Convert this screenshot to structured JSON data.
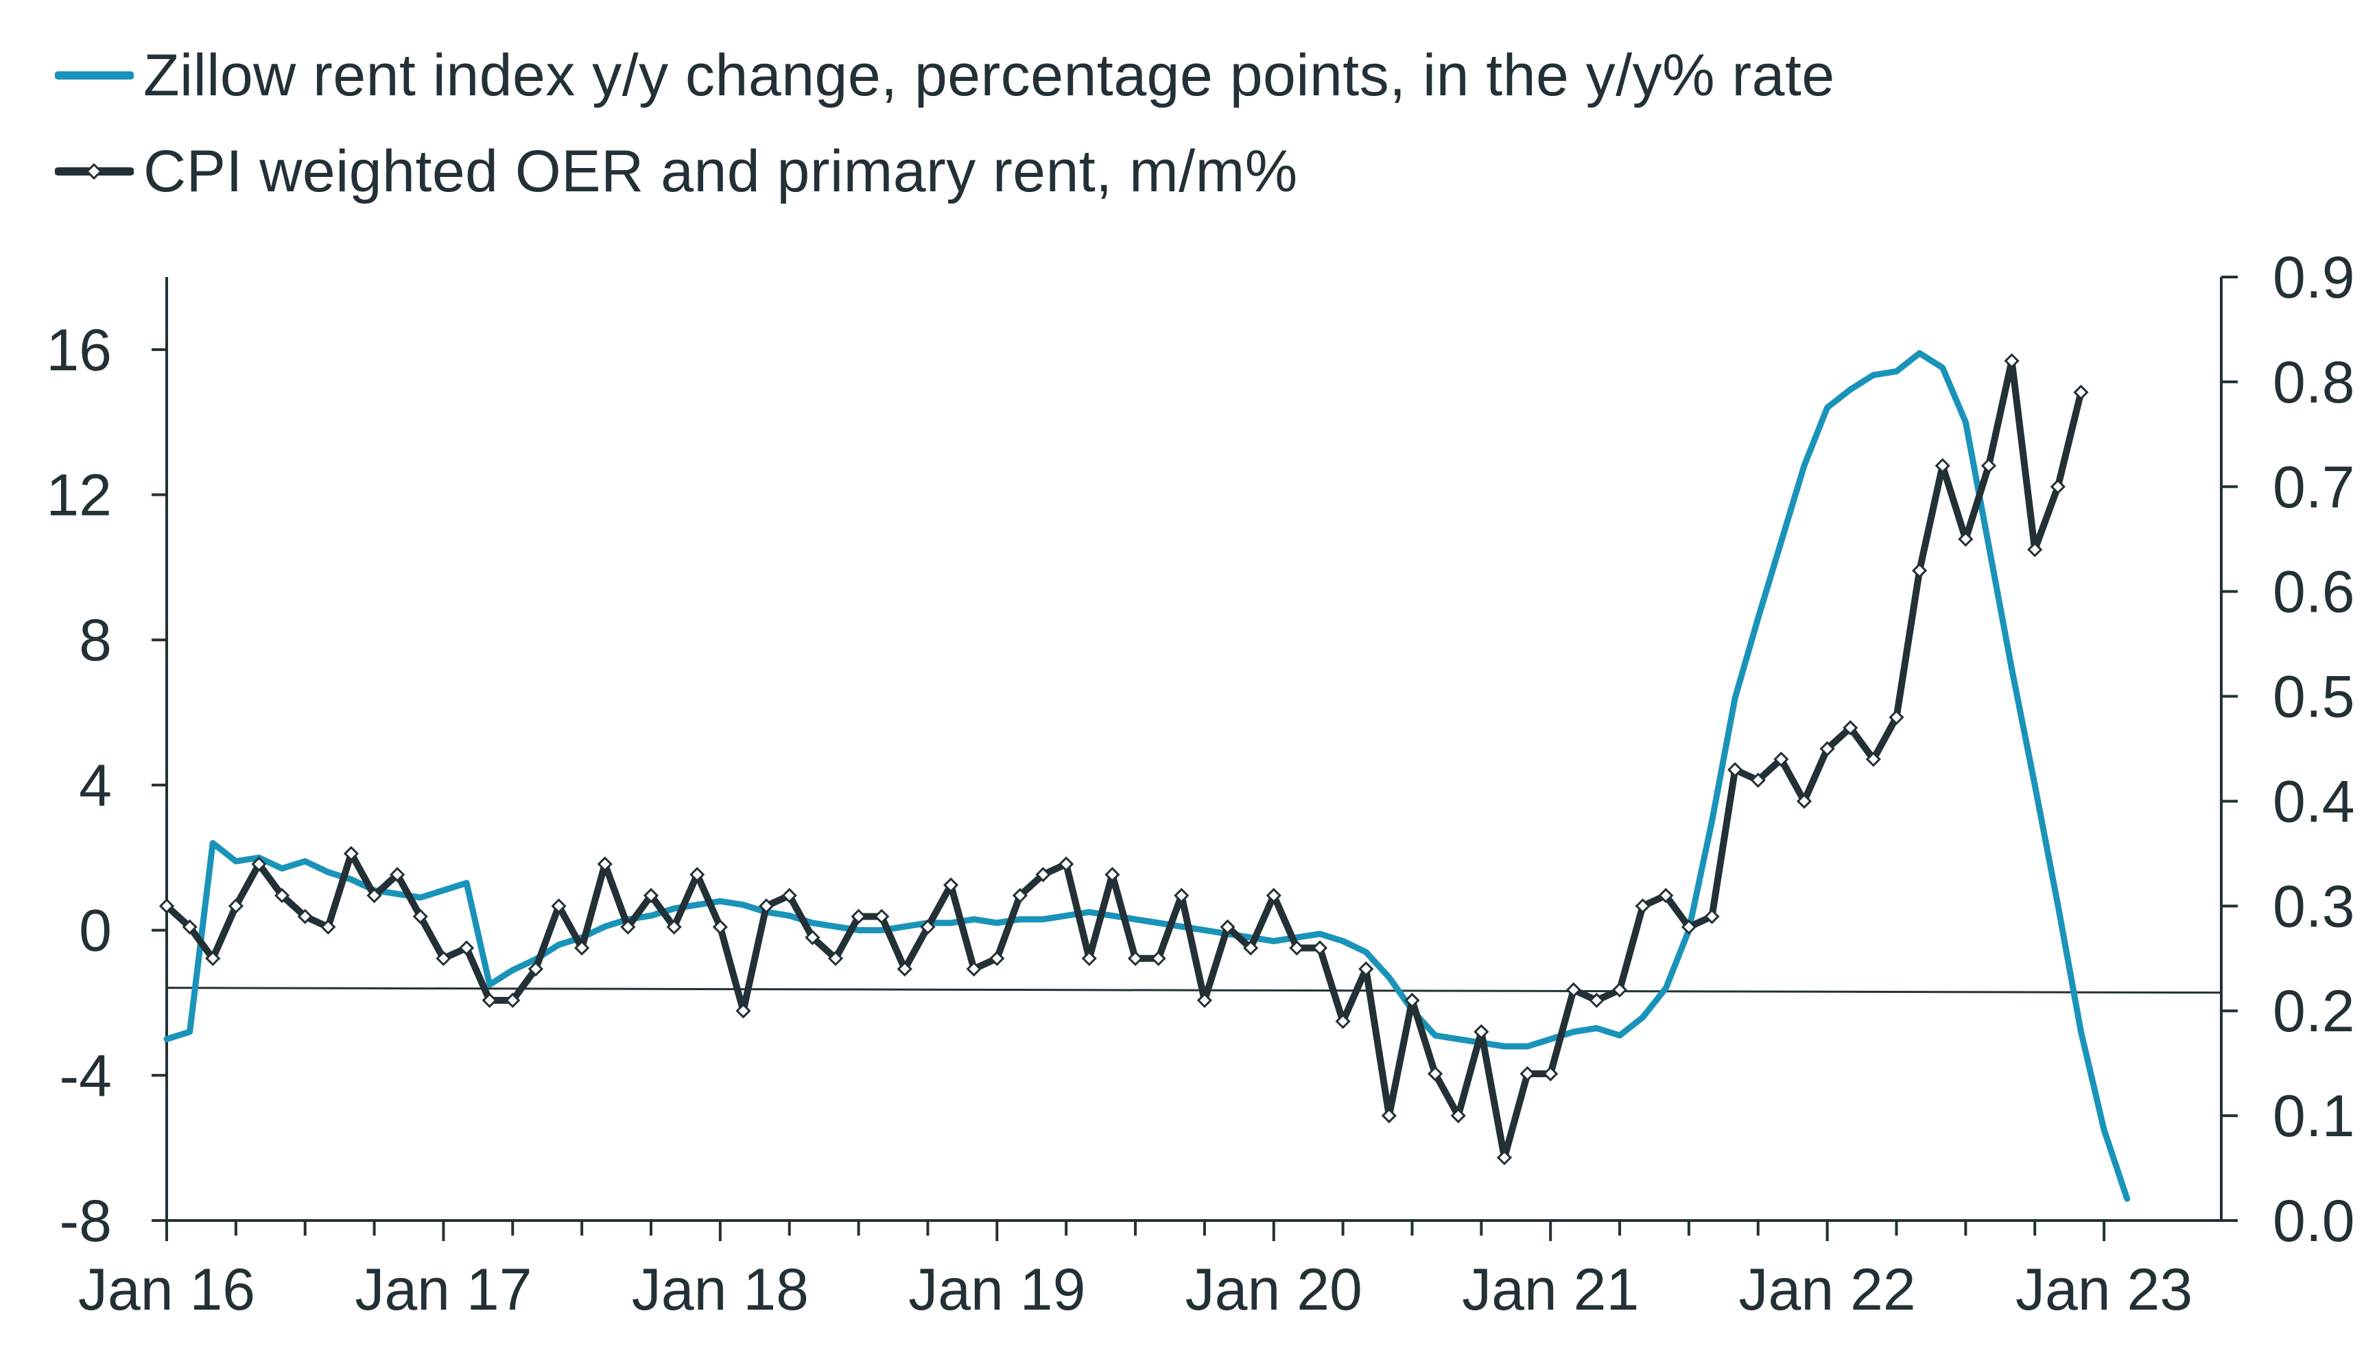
{
  "chart_data": {
    "type": "line",
    "title": "",
    "xlabel": "",
    "ylabel": "",
    "legend_position": "top-left",
    "x_tick_labels": [
      "Jan 16",
      "Jan 17",
      "Jan 18",
      "Jan 19",
      "Jan 20",
      "Jan 21",
      "Jan 22",
      "Jan 23"
    ],
    "left_axis": {
      "ylim": [
        -8,
        18
      ],
      "ticks": [
        -8,
        -4,
        0,
        4,
        8,
        12,
        16
      ],
      "tick_labels": [
        "-8",
        "-4",
        "0",
        "4",
        "8",
        "12",
        "16"
      ]
    },
    "right_axis": {
      "ylim": [
        0.0,
        0.9
      ],
      "ticks": [
        0.0,
        0.1,
        0.2,
        0.3,
        0.4,
        0.5,
        0.6,
        0.7,
        0.8,
        0.9
      ],
      "tick_labels": [
        "0.0",
        "0.1",
        "0.2",
        "0.3",
        "0.4",
        "0.5",
        "0.6",
        "0.7",
        "0.8",
        "0.9"
      ]
    },
    "reference_line": {
      "axis": "right",
      "value": 0.22
    },
    "series": [
      {
        "name": "Zillow rent index y/y change, percentage points, in the y/y% rate",
        "axis": "left",
        "color": "#1A93BA",
        "marker": "none",
        "start": "2016-01",
        "values": [
          -3.0,
          -2.8,
          2.4,
          1.9,
          2.0,
          1.7,
          1.9,
          1.6,
          1.4,
          1.1,
          1.0,
          0.9,
          1.1,
          1.3,
          -1.5,
          -1.1,
          -0.8,
          -0.4,
          -0.2,
          0.1,
          0.3,
          0.4,
          0.6,
          0.7,
          0.8,
          0.7,
          0.5,
          0.4,
          0.2,
          0.1,
          0.0,
          0.0,
          0.1,
          0.2,
          0.2,
          0.3,
          0.2,
          0.3,
          0.3,
          0.4,
          0.5,
          0.4,
          0.3,
          0.2,
          0.1,
          0.0,
          -0.1,
          -0.2,
          -0.3,
          -0.2,
          -0.1,
          -0.3,
          -0.6,
          -1.3,
          -2.2,
          -2.9,
          -3.0,
          -3.1,
          -3.2,
          -3.2,
          -3.0,
          -2.8,
          -2.7,
          -2.9,
          -2.4,
          -1.6,
          0.0,
          3.0,
          6.4,
          8.6,
          10.7,
          12.8,
          14.4,
          14.9,
          15.3,
          15.4,
          15.9,
          15.5,
          14.0,
          10.6,
          7.2,
          4.0,
          0.7,
          -2.8,
          -5.5,
          -7.4
        ]
      },
      {
        "name": "CPI weighted OER and primary rent, m/m%",
        "axis": "right",
        "color": "#233136",
        "marker": "diamond",
        "start": "2016-01",
        "values": [
          0.3,
          0.28,
          0.25,
          0.3,
          0.34,
          0.31,
          0.29,
          0.28,
          0.35,
          0.31,
          0.33,
          0.29,
          0.25,
          0.26,
          0.21,
          0.21,
          0.24,
          0.3,
          0.26,
          0.34,
          0.28,
          0.31,
          0.28,
          0.33,
          0.28,
          0.2,
          0.3,
          0.31,
          0.27,
          0.25,
          0.29,
          0.29,
          0.24,
          0.28,
          0.32,
          0.24,
          0.25,
          0.31,
          0.33,
          0.34,
          0.25,
          0.33,
          0.25,
          0.25,
          0.31,
          0.21,
          0.28,
          0.26,
          0.31,
          0.26,
          0.26,
          0.19,
          0.24,
          0.1,
          0.21,
          0.14,
          0.1,
          0.18,
          0.06,
          0.14,
          0.14,
          0.22,
          0.21,
          0.22,
          0.3,
          0.31,
          0.28,
          0.29,
          0.43,
          0.42,
          0.44,
          0.4,
          0.45,
          0.47,
          0.44,
          0.48,
          0.62,
          0.72,
          0.65,
          0.72,
          0.82,
          0.64,
          0.7,
          0.79
        ]
      }
    ]
  },
  "legend": [
    {
      "label": "Zillow rent index y/y change, percentage points, in the y/y% rate",
      "color": "#1A93BA",
      "marker": "none"
    },
    {
      "label": "CPI weighted OER and primary rent, m/m%",
      "color": "#233136",
      "marker": "diamond"
    }
  ],
  "colors": {
    "axis": "#233136",
    "text": "#233136",
    "background": "#FFFFFF"
  }
}
